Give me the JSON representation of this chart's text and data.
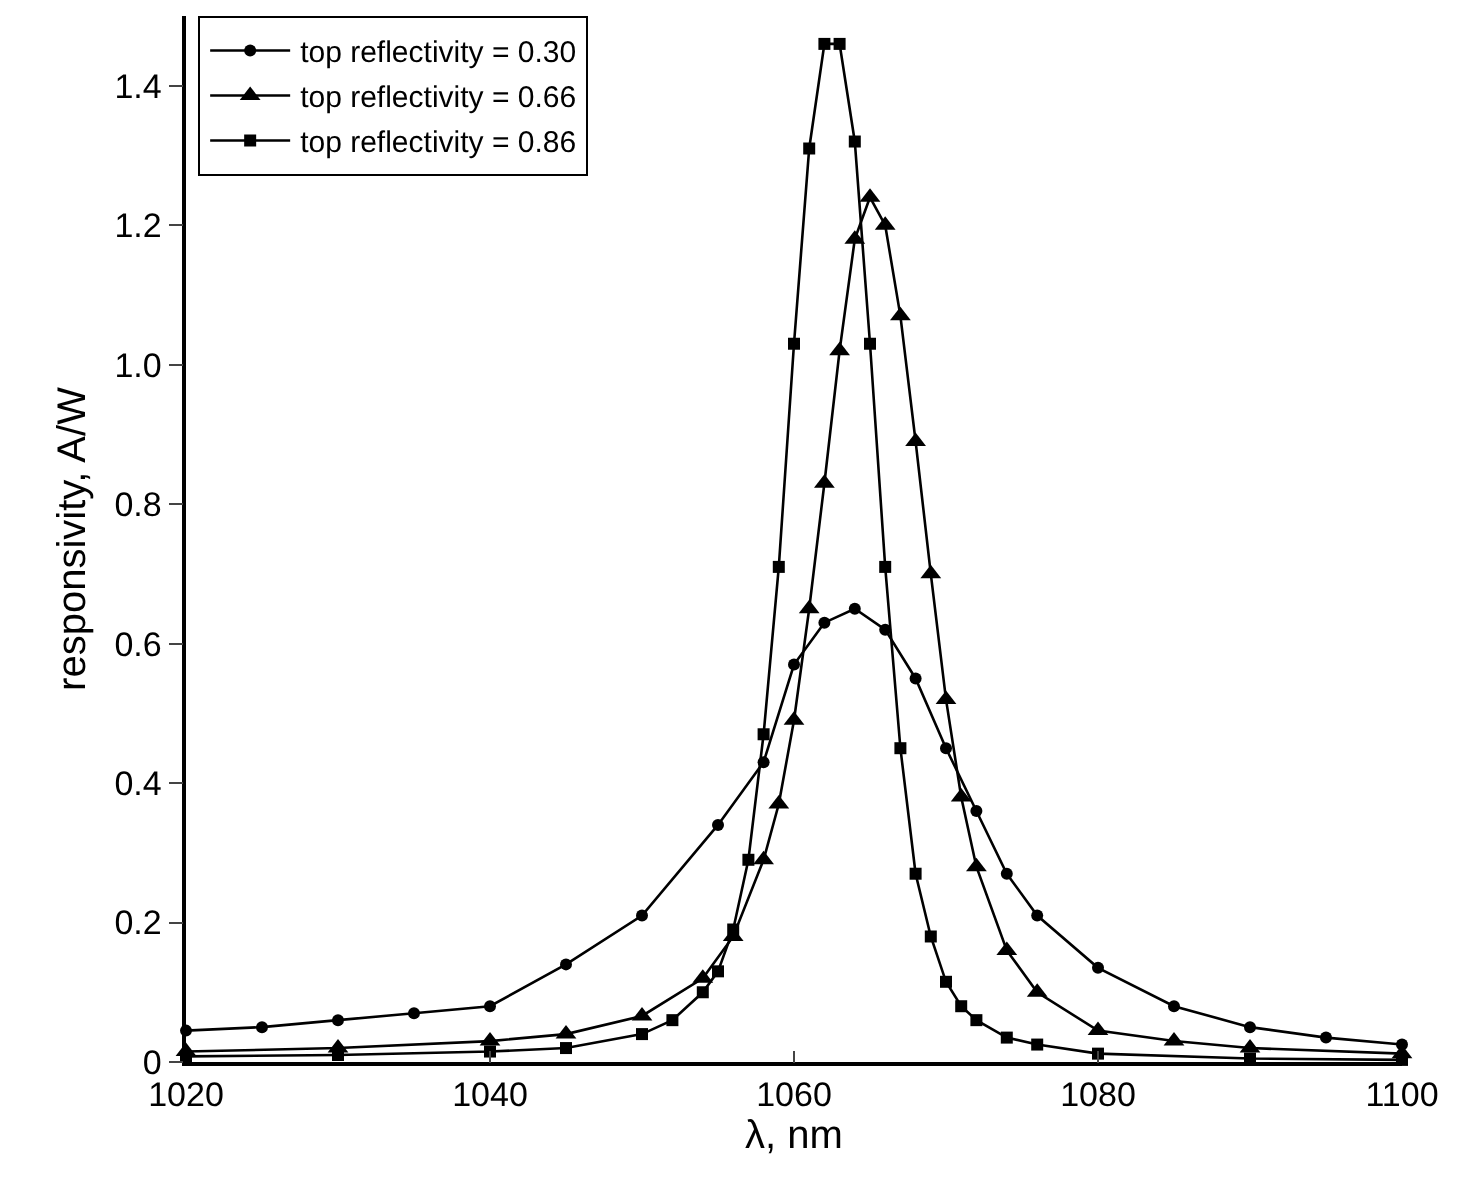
{
  "chart_data": {
    "type": "line",
    "xlabel": "λ, nm",
    "ylabel": "responsivity, A/W",
    "xlim": [
      1020,
      1100
    ],
    "ylim": [
      0,
      1.5
    ],
    "xticks": [
      1020,
      1040,
      1060,
      1080,
      1100
    ],
    "yticks": [
      0,
      {
        "value": 0.2,
        "label": "0.2"
      },
      {
        "value": 0.4,
        "label": "0.4"
      },
      {
        "value": 0.6,
        "label": "0.6"
      },
      {
        "value": 0.8,
        "label": "0.8"
      },
      {
        "value": 1,
        "label": "1.0"
      },
      {
        "value": 1.2,
        "label": "1.2"
      },
      {
        "value": 1.4,
        "label": "1.4"
      }
    ],
    "grid": false,
    "legend": "top left",
    "line_style": "solid",
    "series": [
      {
        "name": "top reflectivity = 0.30",
        "color": "#000000",
        "marker": "circle",
        "x": [
          1020,
          1025,
          1030,
          1035,
          1040,
          1045,
          1050,
          1055,
          1058,
          1060,
          1062,
          1064,
          1066,
          1068,
          1070,
          1072,
          1074,
          1076,
          1080,
          1085,
          1090,
          1095,
          1100
        ],
        "values": [
          0.045,
          0.05,
          0.06,
          0.07,
          0.08,
          0.14,
          0.21,
          0.34,
          0.43,
          0.57,
          0.63,
          0.65,
          0.62,
          0.55,
          0.45,
          0.36,
          0.27,
          0.21,
          0.135,
          0.08,
          0.05,
          0.035,
          0.025
        ]
      },
      {
        "name": "top reflectivity = 0.66",
        "color": "#000000",
        "marker": "triangle",
        "x": [
          1020,
          1030,
          1040,
          1045,
          1050,
          1054,
          1056,
          1058,
          1059,
          1060,
          1061,
          1062,
          1063,
          1064,
          1065,
          1066,
          1067,
          1068,
          1069,
          1070,
          1071,
          1072,
          1074,
          1076,
          1080,
          1085,
          1090,
          1100
        ],
        "values": [
          0.015,
          0.02,
          0.03,
          0.04,
          0.066,
          0.12,
          0.18,
          0.29,
          0.37,
          0.49,
          0.65,
          0.83,
          1.02,
          1.18,
          1.24,
          1.2,
          1.07,
          0.89,
          0.7,
          0.52,
          0.38,
          0.28,
          0.16,
          0.1,
          0.045,
          0.03,
          0.02,
          0.012
        ]
      },
      {
        "name": "top reflectivity = 0.86",
        "color": "#000000",
        "marker": "square",
        "x": [
          1020,
          1030,
          1040,
          1045,
          1050,
          1052,
          1054,
          1055,
          1056,
          1057,
          1058,
          1059,
          1060,
          1061,
          1062,
          1063,
          1064,
          1065,
          1066,
          1067,
          1068,
          1069,
          1070,
          1071,
          1072,
          1074,
          1076,
          1080,
          1090,
          1100
        ],
        "values": [
          0.008,
          0.01,
          0.015,
          0.02,
          0.04,
          0.06,
          0.1,
          0.13,
          0.19,
          0.29,
          0.47,
          0.71,
          1.03,
          1.31,
          1.46,
          1.46,
          1.32,
          1.03,
          0.71,
          0.45,
          0.27,
          0.18,
          0.115,
          0.08,
          0.06,
          0.035,
          0.025,
          0.012,
          0.005,
          0.003
        ]
      }
    ]
  }
}
